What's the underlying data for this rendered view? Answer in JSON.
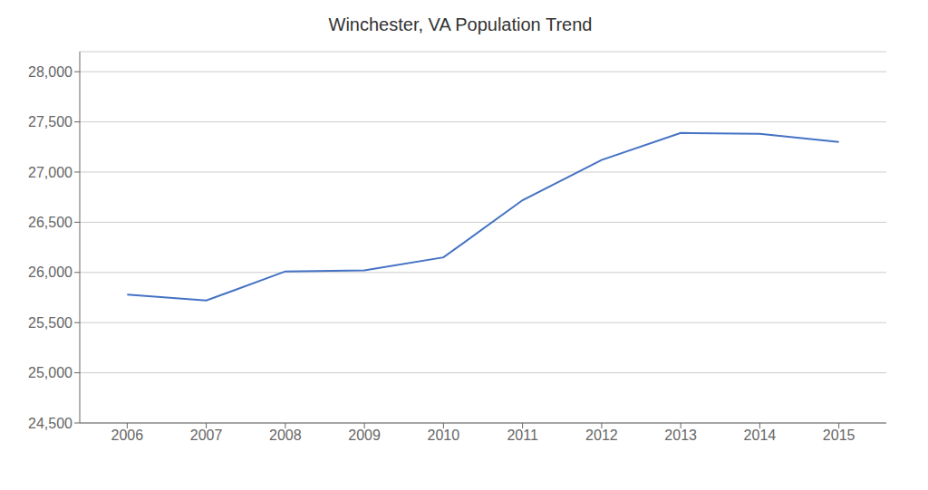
{
  "chart_data": {
    "type": "line",
    "title": "Winchester, VA Population Trend",
    "x": [
      2006,
      2007,
      2008,
      2009,
      2010,
      2011,
      2012,
      2013,
      2014,
      2015
    ],
    "values": [
      25780,
      25720,
      26010,
      26020,
      26150,
      26720,
      27120,
      27390,
      27380,
      27300
    ],
    "color": "#4472C4",
    "xlim": [
      2005.4,
      2015.6
    ],
    "xticks": [
      2006,
      2007,
      2008,
      2009,
      2010,
      2011,
      2012,
      2013,
      2014,
      2015
    ],
    "ylim": [
      24500,
      28200
    ],
    "yticks": [
      {
        "value": 24500,
        "label": "24,500"
      },
      {
        "value": 25000,
        "label": "25,000"
      },
      {
        "value": 25500,
        "label": "25,500"
      },
      {
        "value": 26000,
        "label": "26,000"
      },
      {
        "value": 26500,
        "label": "26,500"
      },
      {
        "value": 27000,
        "label": "27,000"
      },
      {
        "value": 27500,
        "label": "27,500"
      },
      {
        "value": 28000,
        "label": "28,000"
      }
    ],
    "grid": "y"
  }
}
